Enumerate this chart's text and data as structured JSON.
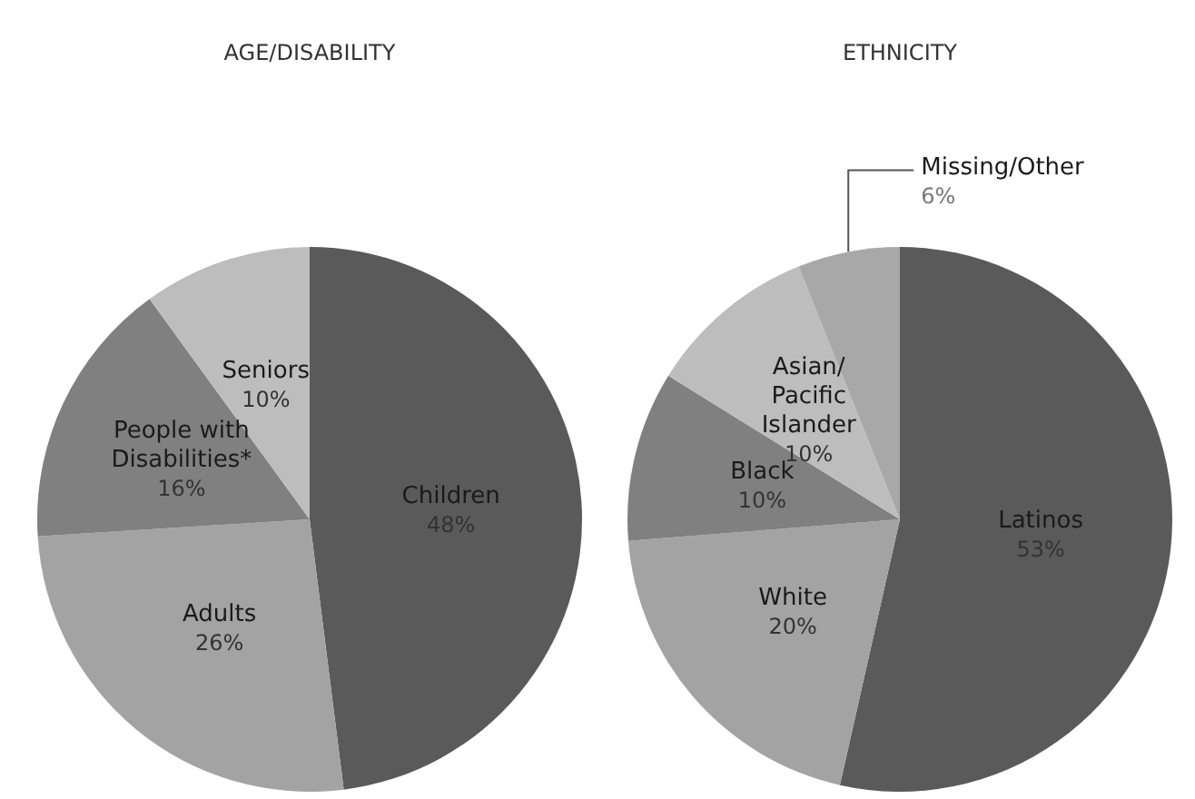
{
  "chart_data": [
    {
      "type": "pie",
      "title": "AGE/DISABILITY",
      "categories": [
        "Children",
        "Adults",
        "People with Disabilities*",
        "Seniors"
      ],
      "values": [
        48,
        26,
        16,
        10
      ],
      "value_labels": [
        "48%",
        "26%",
        "16%",
        "10%"
      ],
      "colors": [
        "#5a5a5a",
        "#a3a3a3",
        "#808080",
        "#bdbdbd"
      ],
      "data_labels": true
    },
    {
      "type": "pie",
      "title": "ETHNICITY",
      "categories": [
        "Latinos",
        "White",
        "Black",
        "Asian/ Pacific Islander",
        "Missing/Other"
      ],
      "values": [
        53,
        20,
        10,
        10,
        6
      ],
      "value_labels": [
        "53%",
        "20%",
        "10%",
        "10%",
        "6%"
      ],
      "colors": [
        "#5a5a5a",
        "#a3a3a3",
        "#808080",
        "#bdbdbd",
        "#a8a8a8"
      ],
      "data_labels": true
    }
  ]
}
